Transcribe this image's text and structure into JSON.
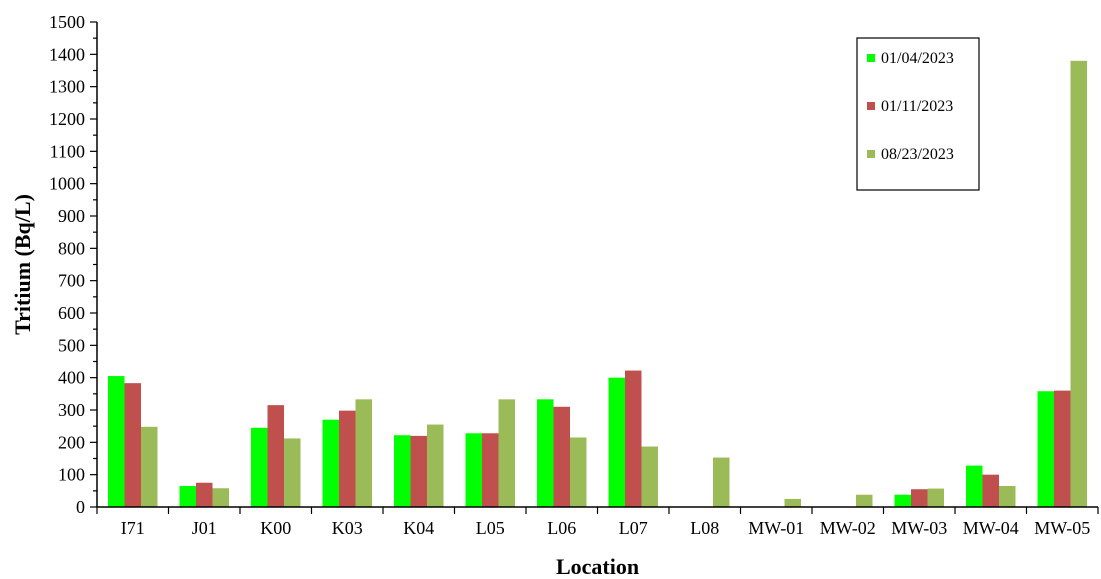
{
  "chart_data": {
    "type": "bar",
    "xlabel": "Location",
    "ylabel": "Tritium (Bq/L)",
    "ylim": [
      0,
      1500
    ],
    "ytick_step": 100,
    "yminor_step": 50,
    "grid": false,
    "legend_position": "top-right",
    "categories": [
      "I71",
      "J01",
      "K00",
      "K03",
      "K04",
      "L05",
      "L06",
      "L07",
      "L08",
      "MW-01",
      "MW-02",
      "MW-03",
      "MW-04",
      "MW-05"
    ],
    "series": [
      {
        "name": "01/04/2023",
        "color": "#00ff00",
        "values": [
          405,
          65,
          245,
          270,
          222,
          228,
          333,
          400,
          null,
          null,
          null,
          38,
          128,
          358
        ]
      },
      {
        "name": "01/11/2023",
        "color": "#c0504d",
        "values": [
          383,
          75,
          315,
          298,
          220,
          228,
          310,
          422,
          null,
          null,
          null,
          55,
          100,
          360
        ]
      },
      {
        "name": "08/23/2023",
        "color": "#9bbb59",
        "values": [
          248,
          58,
          212,
          333,
          255,
          333,
          215,
          187,
          153,
          25,
          38,
          57,
          65,
          1380
        ]
      }
    ]
  }
}
